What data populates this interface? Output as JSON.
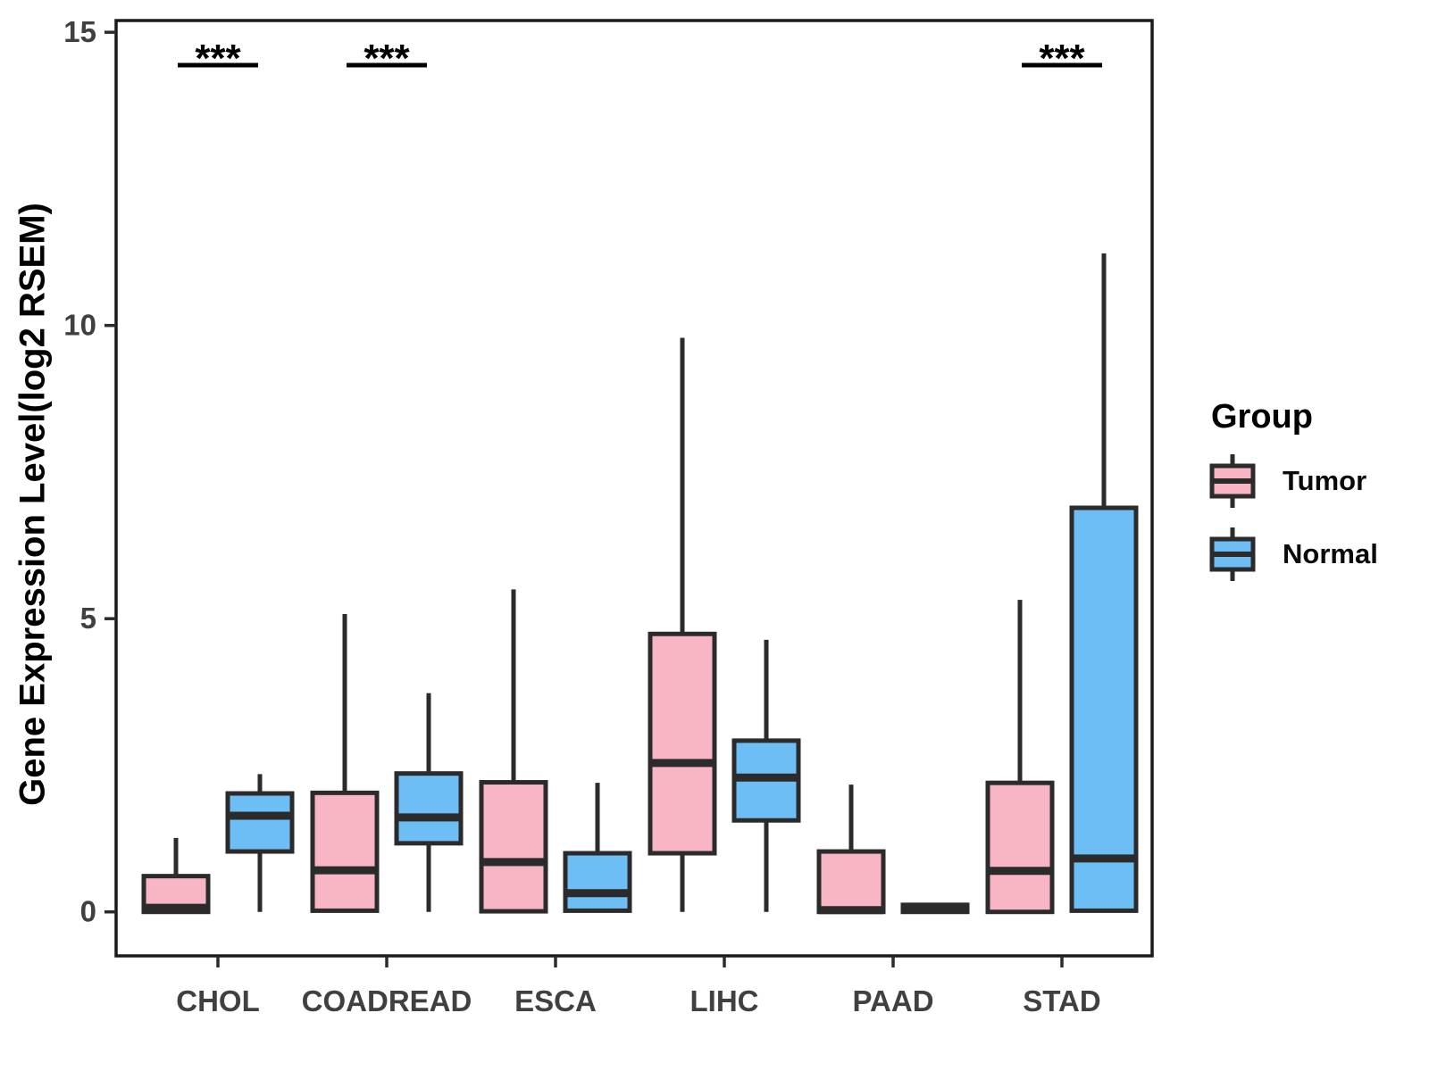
{
  "axes": {
    "y_title": "Gene Expression Level(log2 RSEM)"
  },
  "legend": {
    "title": "Group",
    "entries": [
      {
        "label": "Tumor",
        "color": "#F8B5C4"
      },
      {
        "label": "Normal",
        "color": "#6DBEF5"
      }
    ]
  },
  "chart_data": {
    "type": "boxplot",
    "title": "",
    "xlabel": "",
    "ylabel": "Gene Expression Level(log2 RSEM)",
    "categories": [
      "CHOL",
      "COADREAD",
      "ESCA",
      "LIHC",
      "PAAD",
      "STAD"
    ],
    "groups": [
      "Tumor",
      "Normal"
    ],
    "colors": {
      "Tumor": "#F8B5C4",
      "Normal": "#6DBEF5"
    },
    "stroke_color": "#2B2B2B",
    "tick_label_color": "#404040",
    "ylim": [
      -0.75,
      15.2
    ],
    "yticks": [
      0,
      5,
      10,
      15
    ],
    "grid": false,
    "legend_position": "right",
    "series": [
      {
        "category": "CHOL",
        "group": "Tumor",
        "low": 0,
        "q1": 0,
        "median": 0.07,
        "q3": 0.61,
        "high": 1.26
      },
      {
        "category": "CHOL",
        "group": "Normal",
        "low": 0,
        "q1": 1.03,
        "median": 1.64,
        "q3": 2.02,
        "high": 2.35
      },
      {
        "category": "COADREAD",
        "group": "Tumor",
        "low": 0,
        "q1": 0.02,
        "median": 0.71,
        "q3": 2.03,
        "high": 5.08
      },
      {
        "category": "COADREAD",
        "group": "Normal",
        "low": 0,
        "q1": 1.17,
        "median": 1.61,
        "q3": 2.36,
        "high": 3.73
      },
      {
        "category": "ESCA",
        "group": "Tumor",
        "low": 0,
        "q1": 0.01,
        "median": 0.85,
        "q3": 2.21,
        "high": 5.5
      },
      {
        "category": "ESCA",
        "group": "Normal",
        "low": 0,
        "q1": 0.02,
        "median": 0.32,
        "q3": 1.0,
        "high": 2.2
      },
      {
        "category": "LIHC",
        "group": "Tumor",
        "low": 0,
        "q1": 1.0,
        "median": 2.54,
        "q3": 4.74,
        "high": 9.79
      },
      {
        "category": "LIHC",
        "group": "Normal",
        "low": 0,
        "q1": 1.56,
        "median": 2.29,
        "q3": 2.92,
        "high": 4.64
      },
      {
        "category": "PAAD",
        "group": "Tumor",
        "low": 0,
        "q1": 0,
        "median": 0.03,
        "q3": 1.03,
        "high": 2.17
      },
      {
        "category": "PAAD",
        "group": "Normal",
        "low": 0,
        "q1": 0,
        "median": 0.06,
        "q3": 0.12,
        "high": 0.12
      },
      {
        "category": "STAD",
        "group": "Tumor",
        "low": 0,
        "q1": 0,
        "median": 0.7,
        "q3": 2.2,
        "high": 5.32
      },
      {
        "category": "STAD",
        "group": "Normal",
        "low": 0,
        "q1": 0.02,
        "median": 0.91,
        "q3": 6.89,
        "high": 11.23
      }
    ],
    "significance": [
      {
        "category": "CHOL",
        "label": "***"
      },
      {
        "category": "COADREAD",
        "label": "***"
      },
      {
        "category": "STAD",
        "label": "***"
      }
    ]
  }
}
